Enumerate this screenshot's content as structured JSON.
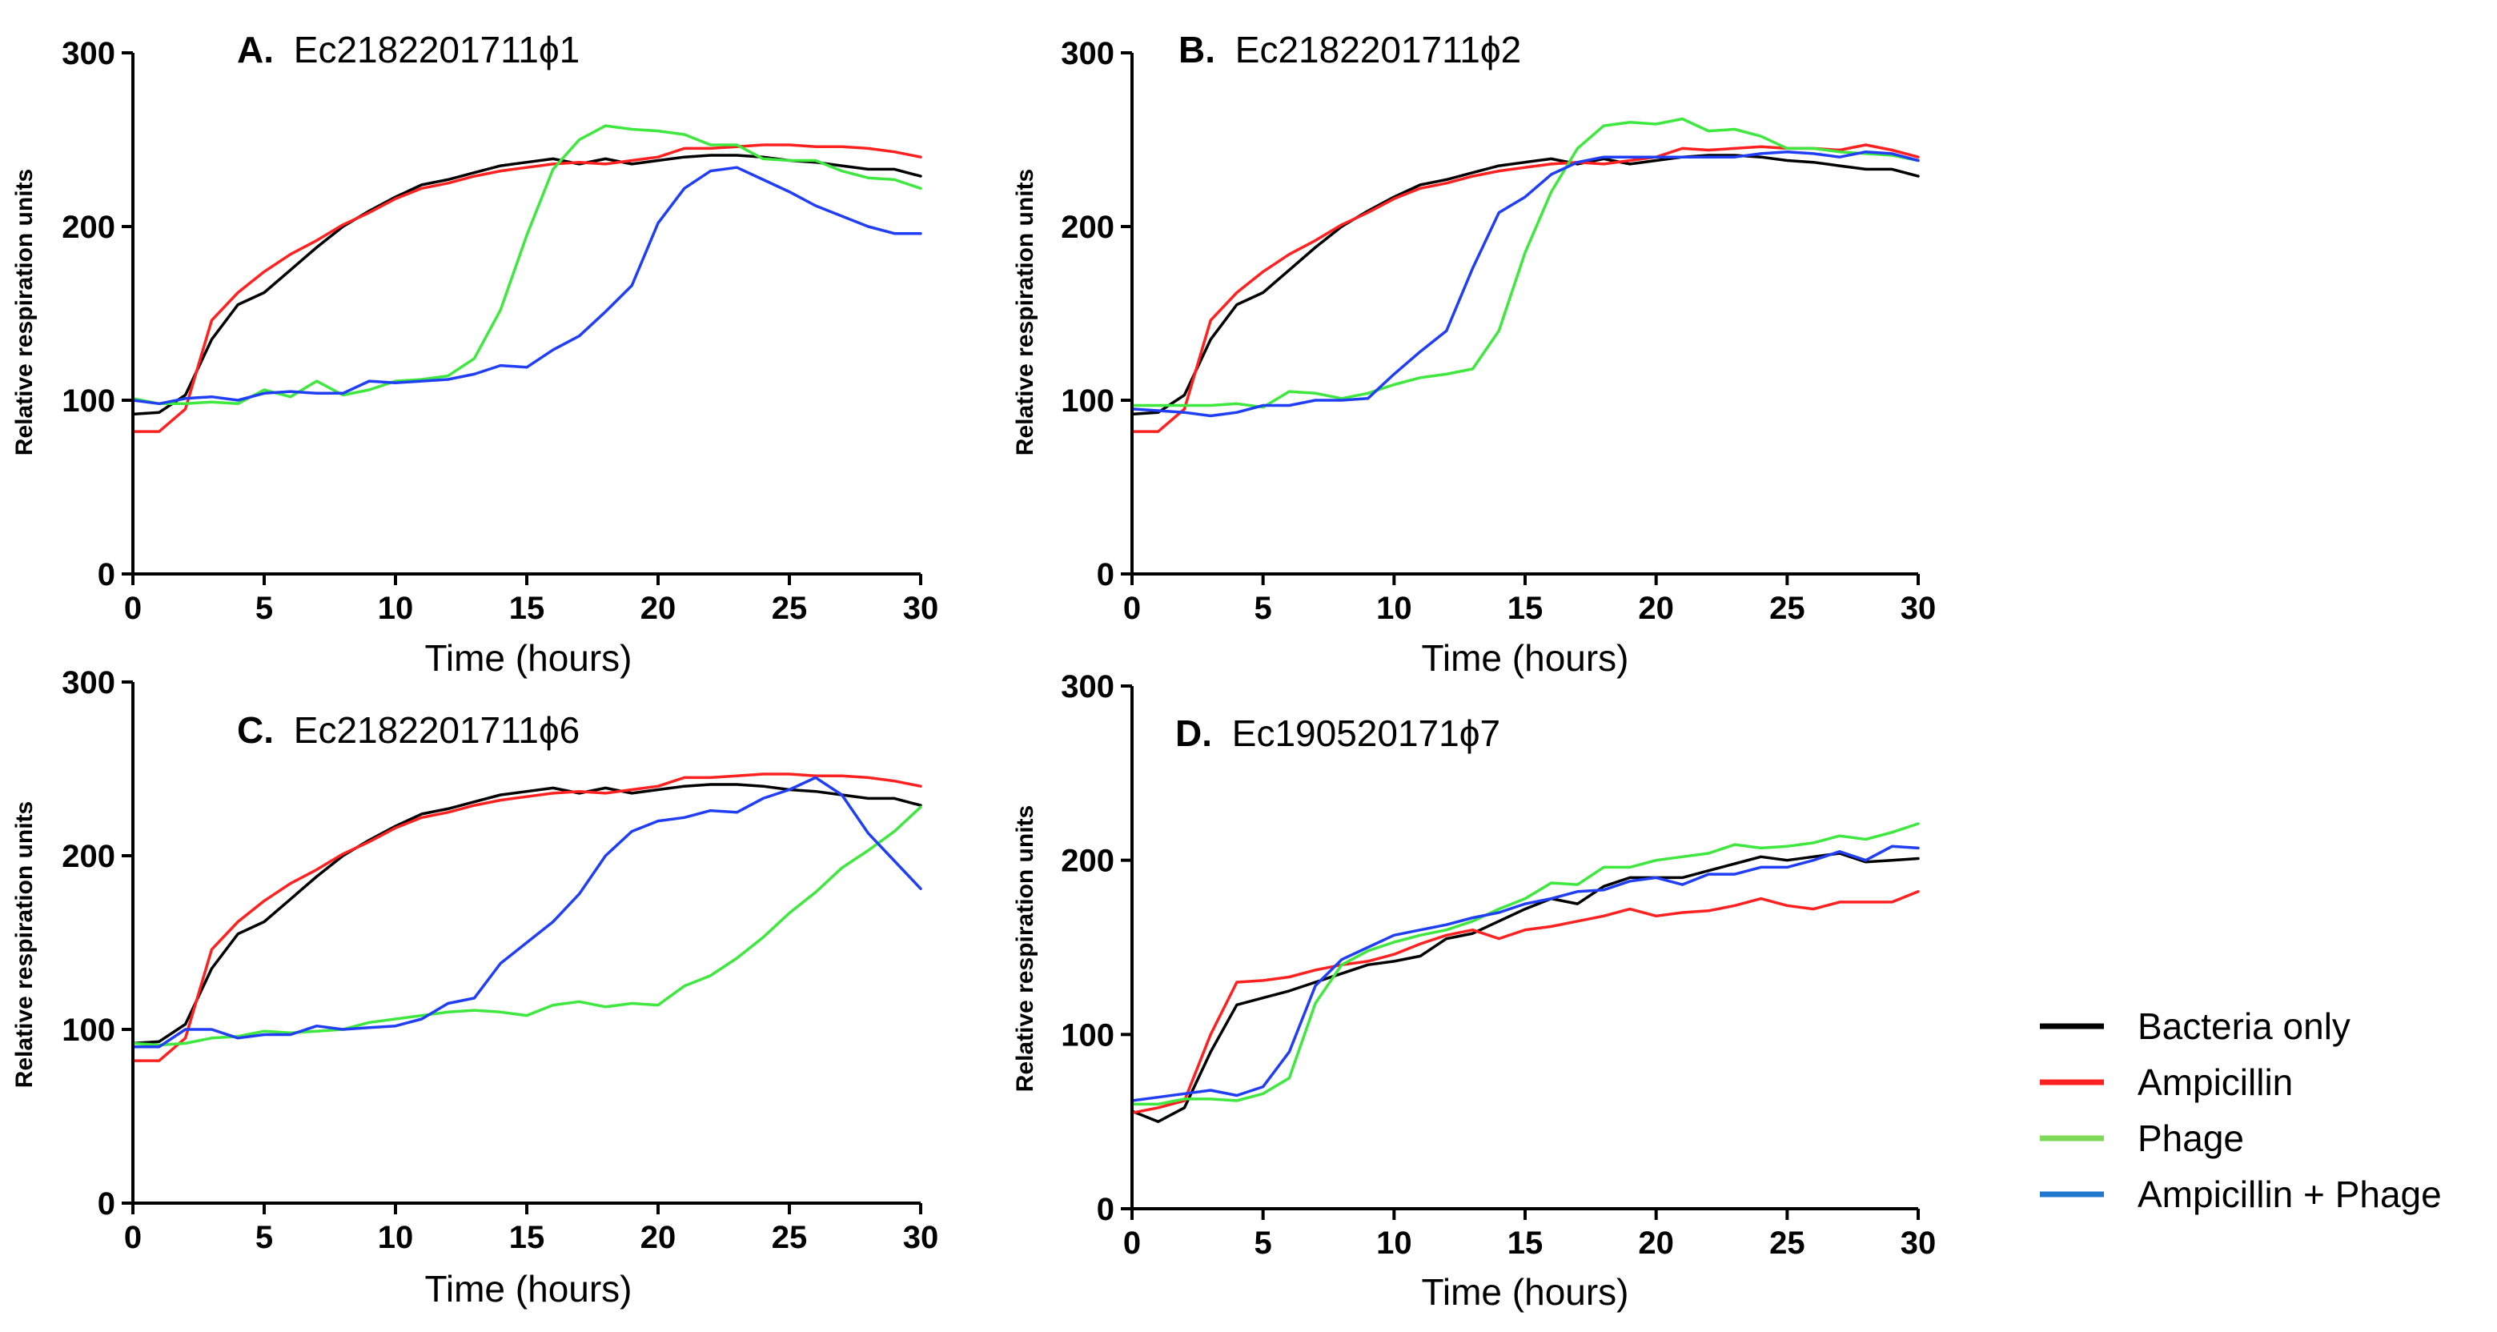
{
  "chart_data": [
    {
      "type": "line",
      "panel": "A.",
      "title": "Ec2182201711ϕ1",
      "xlabel": "Time (hours)",
      "ylabel": "Relative respiration units",
      "xlim": [
        0,
        30
      ],
      "ylim": [
        0,
        300
      ],
      "xticks": [
        "0",
        "5",
        "10",
        "15",
        "20",
        "25",
        "30"
      ],
      "yticks": [
        "0",
        "100",
        "200",
        "300"
      ],
      "x": [
        0,
        1,
        2,
        3,
        4,
        5,
        6,
        7,
        8,
        9,
        10,
        11,
        12,
        13,
        14,
        15,
        16,
        17,
        18,
        19,
        20,
        21,
        22,
        23,
        24,
        25,
        26,
        27,
        28,
        29,
        30
      ],
      "series": [
        {
          "name": "Bacteria only",
          "color": "#000000",
          "values": [
            92,
            93,
            103,
            135,
            155,
            162,
            175,
            188,
            200,
            209,
            217,
            224,
            227,
            231,
            235,
            237,
            239,
            236,
            239,
            236,
            238,
            240,
            241,
            241,
            240,
            238,
            237,
            235,
            233,
            233,
            229
          ]
        },
        {
          "name": "Ampicillin",
          "color": "#ff2020",
          "values": [
            82,
            82,
            95,
            146,
            162,
            174,
            184,
            192,
            201,
            208,
            216,
            222,
            225,
            229,
            232,
            234,
            236,
            237,
            236,
            238,
            240,
            245,
            245,
            246,
            247,
            247,
            246,
            246,
            245,
            243,
            240
          ]
        },
        {
          "name": "Phage",
          "color": "#3ee83e",
          "values": [
            101,
            98,
            98,
            99,
            98,
            106,
            102,
            111,
            103,
            106,
            111,
            112,
            114,
            124,
            152,
            195,
            233,
            250,
            258,
            256,
            255,
            253,
            247,
            247,
            239,
            238,
            238,
            232,
            228,
            227,
            222
          ]
        },
        {
          "name": "Ampicillin + Phage",
          "color": "#1f3ef5",
          "values": [
            100,
            98,
            101,
            102,
            100,
            104,
            105,
            104,
            104,
            111,
            110,
            111,
            112,
            115,
            120,
            119,
            129,
            137,
            151,
            166,
            202,
            222,
            232,
            234,
            227,
            220,
            212,
            206,
            200,
            196,
            196
          ]
        }
      ]
    },
    {
      "type": "line",
      "panel": "B.",
      "title": "Ec2182201711ϕ2",
      "xlabel": "Time (hours)",
      "ylabel": "Relative respiration units",
      "xlim": [
        0,
        30
      ],
      "ylim": [
        0,
        300
      ],
      "xticks": [
        "0",
        "5",
        "10",
        "15",
        "20",
        "25",
        "30"
      ],
      "yticks": [
        "0",
        "100",
        "200",
        "300"
      ],
      "x": [
        0,
        1,
        2,
        3,
        4,
        5,
        6,
        7,
        8,
        9,
        10,
        11,
        12,
        13,
        14,
        15,
        16,
        17,
        18,
        19,
        20,
        21,
        22,
        23,
        24,
        25,
        26,
        27,
        28,
        29,
        30
      ],
      "series": [
        {
          "name": "Bacteria only",
          "color": "#000000",
          "values": [
            92,
            93,
            103,
            135,
            155,
            162,
            175,
            188,
            200,
            209,
            217,
            224,
            227,
            231,
            235,
            237,
            239,
            236,
            239,
            236,
            238,
            240,
            241,
            241,
            240,
            238,
            237,
            235,
            233,
            233,
            229
          ]
        },
        {
          "name": "Ampicillin",
          "color": "#ff2020",
          "values": [
            82,
            82,
            95,
            146,
            162,
            174,
            184,
            192,
            201,
            208,
            216,
            222,
            225,
            229,
            232,
            234,
            236,
            237,
            236,
            238,
            240,
            245,
            244,
            245,
            246,
            245,
            245,
            244,
            247,
            244,
            240
          ]
        },
        {
          "name": "Phage",
          "color": "#3ee83e",
          "values": [
            97,
            97,
            97,
            97,
            98,
            96,
            105,
            104,
            101,
            104,
            109,
            113,
            115,
            118,
            140,
            185,
            220,
            245,
            258,
            260,
            259,
            262,
            255,
            256,
            252,
            245,
            245,
            243,
            242,
            241,
            238
          ]
        },
        {
          "name": "Ampicillin + Phage",
          "color": "#1f3ef5",
          "values": [
            95,
            94,
            93,
            91,
            93,
            97,
            97,
            100,
            100,
            101,
            115,
            128,
            140,
            176,
            208,
            217,
            230,
            237,
            240,
            240,
            240,
            240,
            240,
            240,
            242,
            243,
            242,
            240,
            243,
            242,
            238
          ]
        }
      ]
    },
    {
      "type": "line",
      "panel": "C.",
      "title": "Ec2182201711ϕ6",
      "xlabel": "Time (hours)",
      "ylabel": "Relative respiration units",
      "xlim": [
        0,
        30
      ],
      "ylim": [
        0,
        300
      ],
      "xticks": [
        "0",
        "5",
        "10",
        "15",
        "20",
        "25",
        "30"
      ],
      "yticks": [
        "0",
        "100",
        "200",
        "300"
      ],
      "x": [
        0,
        1,
        2,
        3,
        4,
        5,
        6,
        7,
        8,
        9,
        10,
        11,
        12,
        13,
        14,
        15,
        16,
        17,
        18,
        19,
        20,
        21,
        22,
        23,
        24,
        25,
        26,
        27,
        28,
        29,
        30
      ],
      "series": [
        {
          "name": "Bacteria only",
          "color": "#000000",
          "values": [
            92,
            93,
            103,
            135,
            155,
            162,
            175,
            188,
            200,
            209,
            217,
            224,
            227,
            231,
            235,
            237,
            239,
            236,
            239,
            236,
            238,
            240,
            241,
            241,
            240,
            238,
            237,
            235,
            233,
            233,
            229
          ]
        },
        {
          "name": "Ampicillin",
          "color": "#ff2020",
          "values": [
            82,
            82,
            95,
            146,
            162,
            174,
            184,
            192,
            201,
            208,
            216,
            222,
            225,
            229,
            232,
            234,
            236,
            237,
            236,
            238,
            240,
            245,
            245,
            246,
            247,
            247,
            246,
            246,
            245,
            243,
            240
          ]
        },
        {
          "name": "Phage",
          "color": "#3ee83e",
          "values": [
            92,
            91,
            92,
            95,
            96,
            99,
            98,
            99,
            100,
            104,
            106,
            108,
            110,
            111,
            110,
            108,
            114,
            116,
            113,
            115,
            114,
            125,
            131,
            141,
            153,
            167,
            179,
            193,
            203,
            214,
            228
          ]
        },
        {
          "name": "Ampicillin + Phage",
          "color": "#1f3ef5",
          "values": [
            90,
            90,
            100,
            100,
            95,
            97,
            97,
            102,
            100,
            101,
            102,
            106,
            115,
            118,
            138,
            150,
            162,
            178,
            200,
            214,
            220,
            222,
            226,
            225,
            233,
            238,
            245,
            235,
            213,
            197,
            181
          ]
        }
      ]
    },
    {
      "type": "line",
      "panel": "D.",
      "title": "Ec190520171ϕ7",
      "xlabel": "Time (hours)",
      "ylabel": "Relative respiration units",
      "xlim": [
        0,
        30
      ],
      "ylim": [
        0,
        300
      ],
      "xticks": [
        "0",
        "5",
        "10",
        "15",
        "20",
        "25",
        "30"
      ],
      "yticks": [
        "0",
        "100",
        "200",
        "300"
      ],
      "x": [
        0,
        1,
        2,
        3,
        4,
        5,
        6,
        7,
        8,
        9,
        10,
        11,
        12,
        13,
        14,
        15,
        16,
        17,
        18,
        19,
        20,
        21,
        22,
        23,
        24,
        25,
        26,
        27,
        28,
        29,
        30
      ],
      "series": [
        {
          "name": "Bacteria only",
          "color": "#000000",
          "values": [
            56,
            50,
            58,
            90,
            117,
            121,
            125,
            130,
            135,
            140,
            142,
            145,
            155,
            158,
            165,
            172,
            178,
            175,
            185,
            190,
            190,
            190,
            194,
            198,
            202,
            200,
            202,
            204,
            199,
            200,
            201
          ]
        },
        {
          "name": "Ampicillin",
          "color": "#ff2020",
          "values": [
            55,
            58,
            62,
            100,
            130,
            131,
            133,
            137,
            140,
            142,
            146,
            152,
            157,
            160,
            155,
            160,
            162,
            165,
            168,
            172,
            168,
            170,
            171,
            174,
            178,
            174,
            172,
            176,
            176,
            176,
            182
          ]
        },
        {
          "name": "Phage",
          "color": "#3ee83e",
          "values": [
            60,
            60,
            63,
            63,
            62,
            66,
            75,
            118,
            140,
            148,
            153,
            157,
            160,
            165,
            172,
            178,
            187,
            186,
            196,
            196,
            200,
            202,
            204,
            209,
            207,
            208,
            210,
            214,
            212,
            216,
            221
          ]
        },
        {
          "name": "Ampicillin + Phage",
          "color": "#1f3ef5",
          "values": [
            62,
            64,
            66,
            68,
            65,
            70,
            90,
            128,
            143,
            150,
            157,
            160,
            163,
            167,
            170,
            175,
            178,
            182,
            183,
            188,
            190,
            186,
            192,
            192,
            196,
            196,
            200,
            205,
            200,
            208,
            207
          ]
        }
      ]
    }
  ],
  "legend": [
    {
      "label": "Bacteria only",
      "color": "#000000"
    },
    {
      "label": "Ampicillin",
      "color": "#ff2020"
    },
    {
      "label": "Phage",
      "color": "#7ed957"
    },
    {
      "label": "Ampicillin + Phage",
      "color": "#1f78d0"
    }
  ]
}
